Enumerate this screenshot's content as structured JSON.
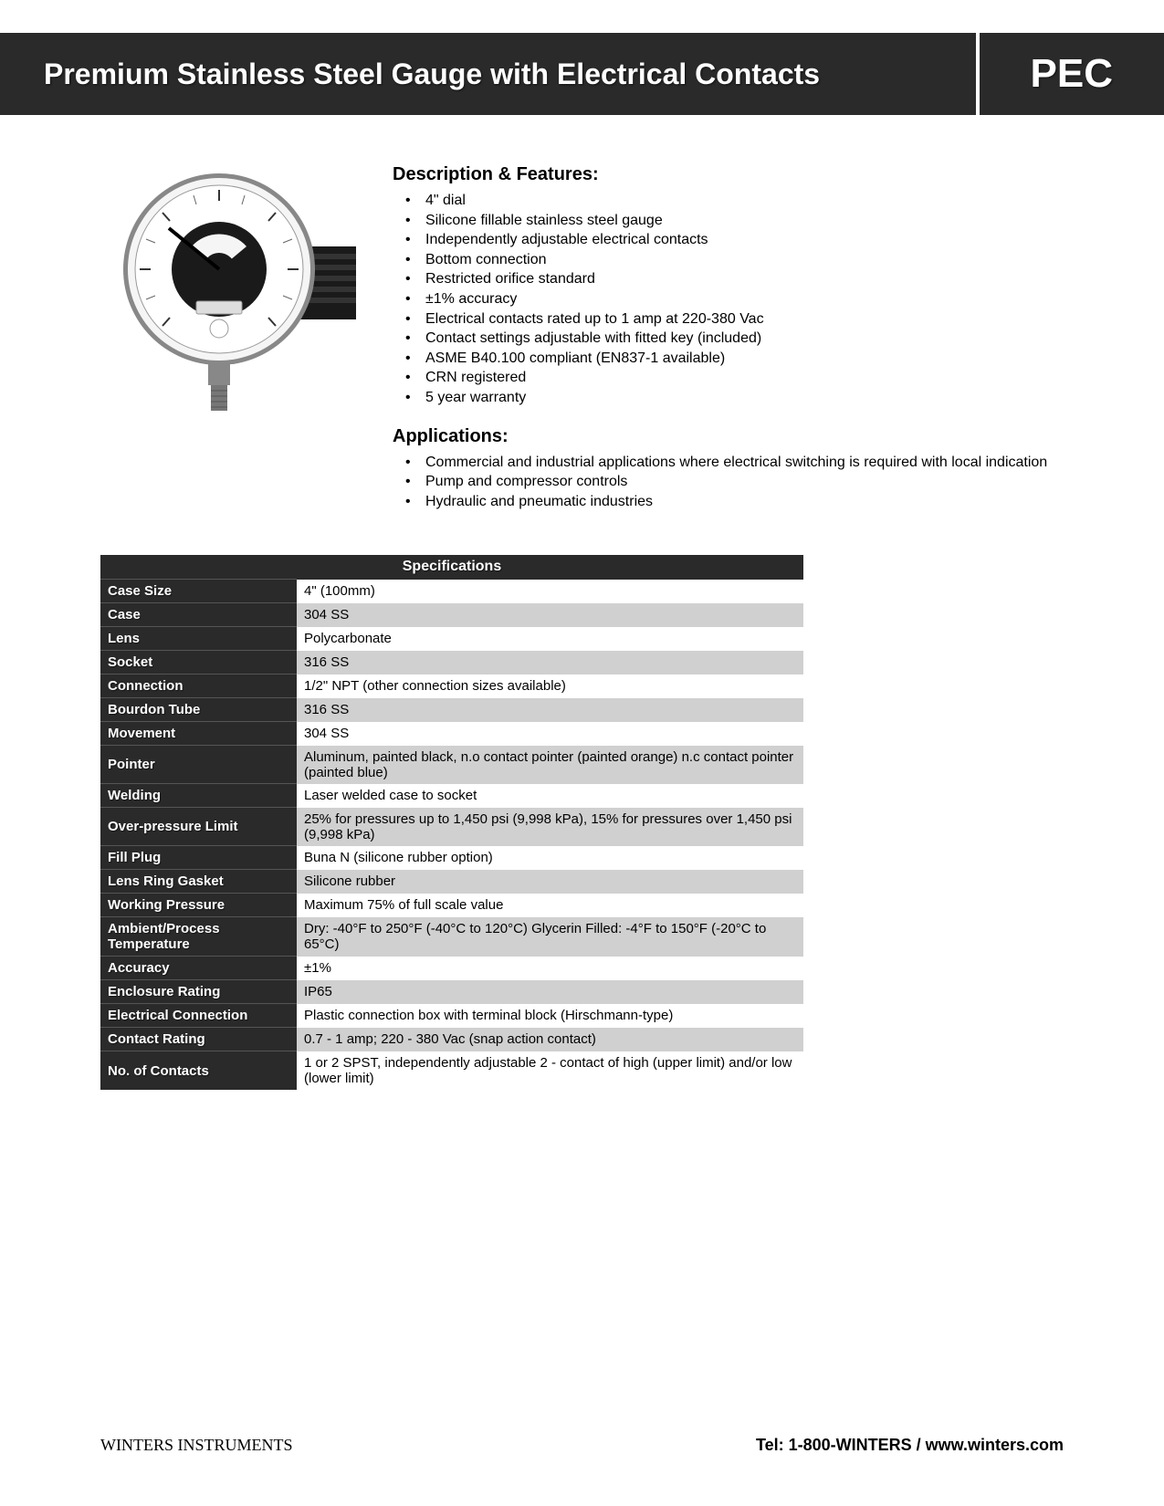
{
  "header": {
    "title": "Premium Stainless Steel Gauge with Electrical Contacts",
    "code": "PEC"
  },
  "description": {
    "heading": "Description & Features:",
    "items": [
      "4\" dial",
      "Silicone fillable stainless steel gauge",
      "Independently adjustable electrical contacts",
      "Bottom connection",
      "Restricted orifice standard",
      "±1% accuracy",
      "Electrical contacts rated up to 1 amp at 220-380 Vac",
      "Contact settings adjustable with fitted key (included)",
      "ASME B40.100 compliant (EN837-1 available)",
      "CRN registered",
      "5 year warranty"
    ]
  },
  "applications": {
    "heading": "Applications:",
    "items": [
      "Commercial and industrial applications where electrical switching is required with local indication",
      "Pump and compressor controls",
      "Hydraulic and pneumatic industries"
    ]
  },
  "spec_table": {
    "title": "Specifications",
    "rows": [
      {
        "label": "Case Size",
        "value": "4\" (100mm)"
      },
      {
        "label": "Case",
        "value": "304 SS"
      },
      {
        "label": "Lens",
        "value": "Polycarbonate"
      },
      {
        "label": "Socket",
        "value": "316 SS"
      },
      {
        "label": "Connection",
        "value": "1/2\" NPT (other connection sizes available)"
      },
      {
        "label": "Bourdon Tube",
        "value": "316 SS"
      },
      {
        "label": "Movement",
        "value": "304 SS"
      },
      {
        "label": "Pointer",
        "value": "Aluminum, painted black, n.o contact pointer (painted orange) n.c contact pointer (painted blue)"
      },
      {
        "label": "Welding",
        "value": "Laser welded case to socket"
      },
      {
        "label": "Over-pressure Limit",
        "value": "25% for pressures up to 1,450 psi (9,998 kPa), 15% for pressures over 1,450 psi (9,998 kPa)"
      },
      {
        "label": "Fill Plug",
        "value": "Buna N (silicone rubber option)"
      },
      {
        "label": "Lens Ring Gasket",
        "value": "Silicone rubber"
      },
      {
        "label": "Working Pressure",
        "value": "Maximum 75% of full scale value"
      },
      {
        "label": "Ambient/Process Temperature",
        "value": "Dry: -40°F to 250°F (-40°C to 120°C) Glycerin Filled: -4°F to 150°F (-20°C to 65°C)"
      },
      {
        "label": "Accuracy",
        "value": "±1%"
      },
      {
        "label": "Enclosure Rating",
        "value": "IP65"
      },
      {
        "label": "Electrical Connection",
        "value": "Plastic connection box with terminal block (Hirschmann-type)"
      },
      {
        "label": "Contact Rating",
        "value": "0.7 - 1 amp; 220 - 380 Vac (snap action contact)"
      },
      {
        "label": "No. of Contacts",
        "value": "1 or 2 SPST, independently adjustable 2 - contact of high (upper limit) and/or low (lower limit)"
      }
    ]
  },
  "footer": {
    "company": "WINTERS INSTRUMENTS",
    "contact": "Tel: 1-800-WINTERS / www.winters.com"
  },
  "colors": {
    "banner_bg": "#2a2a2a",
    "alt_row": "#d0d0d0",
    "text": "#000000",
    "white": "#ffffff"
  }
}
